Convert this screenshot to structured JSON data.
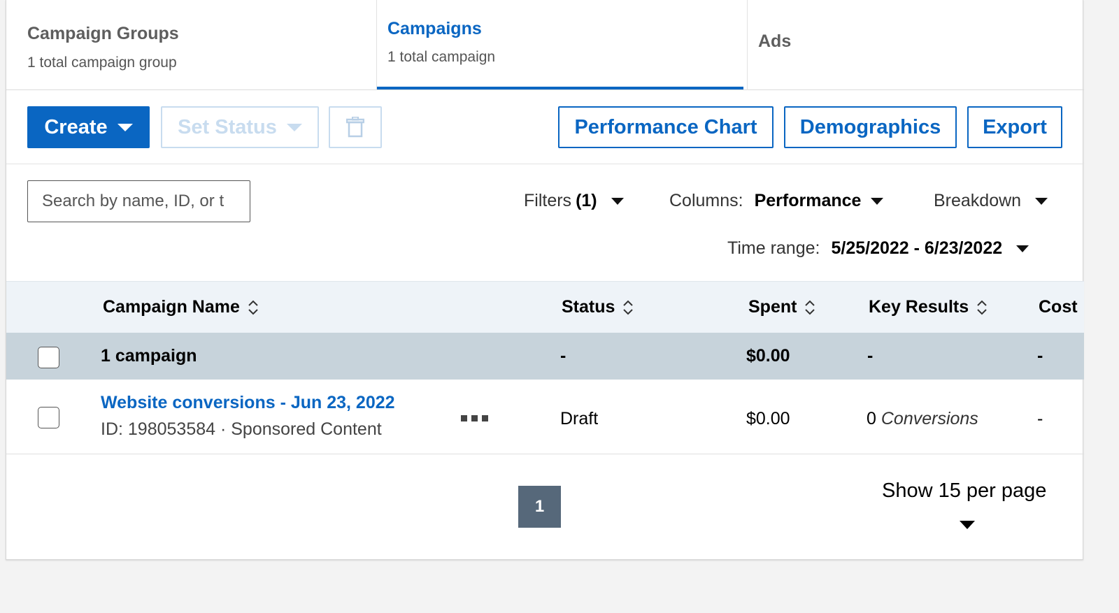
{
  "tabs": {
    "groups": {
      "title": "Campaign Groups",
      "subtitle": "1 total campaign group"
    },
    "campaigns": {
      "title": "Campaigns",
      "subtitle": "1 total campaign"
    },
    "ads": {
      "title": "Ads"
    }
  },
  "toolbar": {
    "create_label": "Create",
    "set_status_label": "Set Status",
    "performance_chart_label": "Performance Chart",
    "demographics_label": "Demographics",
    "export_label": "Export"
  },
  "filters": {
    "search_placeholder": "Search by name, ID, or t",
    "filters_label": "Filters",
    "filters_count": "(1)",
    "columns_label": "Columns:",
    "columns_value": "Performance",
    "breakdown_label": "Breakdown",
    "time_range_label": "Time range:",
    "time_range_value": "5/25/2022 - 6/23/2022"
  },
  "table": {
    "headers": {
      "name": "Campaign Name",
      "status": "Status",
      "spent": "Spent",
      "key_results": "Key Results",
      "cost": "Cost"
    },
    "summary": {
      "label": "1 campaign",
      "status": "-",
      "spent": "$0.00",
      "key_results": "-",
      "cost": "-"
    },
    "rows": [
      {
        "name": "Website conversions - Jun 23, 2022",
        "meta": "ID: 198053584 · Sponsored Content",
        "status": "Draft",
        "spent": "$0.00",
        "key_results_count": "0",
        "key_results_unit": "Conversions",
        "cost": "-"
      }
    ]
  },
  "pagination": {
    "current_page": "1",
    "per_page_label": "Show 15 per page"
  },
  "colors": {
    "brand": "#0a66c2",
    "summary_bg": "#c7d3db",
    "header_bg": "#eef3f8",
    "page_button": "#56687a"
  }
}
